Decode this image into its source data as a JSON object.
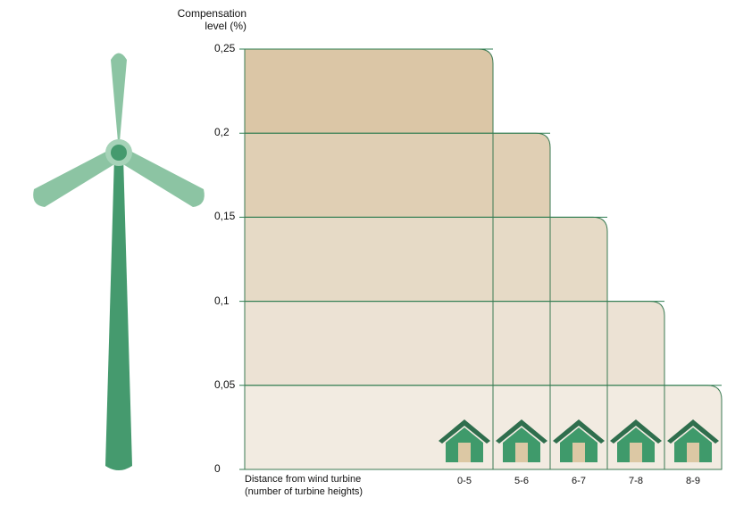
{
  "chart_data": {
    "type": "bar",
    "ylabel": "Compensation\nlevel (%)",
    "xlabel_line1": "Distance from wind turbine",
    "xlabel_line2": "(number of turbine heights)",
    "categories": [
      "0-5",
      "5-6",
      "6-7",
      "7-8",
      "8-9"
    ],
    "values": [
      0.25,
      0.2,
      0.15,
      0.1,
      0.05
    ],
    "yticks": [
      "0",
      "0,05",
      "0,1",
      "0,15",
      "0,2",
      "0,25"
    ],
    "ylim": [
      0,
      0.25
    ],
    "grid": true,
    "colors": {
      "bars": [
        "#dbc6a6",
        "#e0cfb4",
        "#e6dac6",
        "#ece2d4",
        "#f2ebe1"
      ],
      "gridline": "#2e7d50",
      "barEdge": "#3a7a52",
      "house": "#3f9a6b",
      "houseRoof": "#2f6e4d",
      "houseDoor": "#dcc8a4",
      "turbineTower": "#459a6e",
      "turbineBlade": "#8cc4a3"
    }
  }
}
